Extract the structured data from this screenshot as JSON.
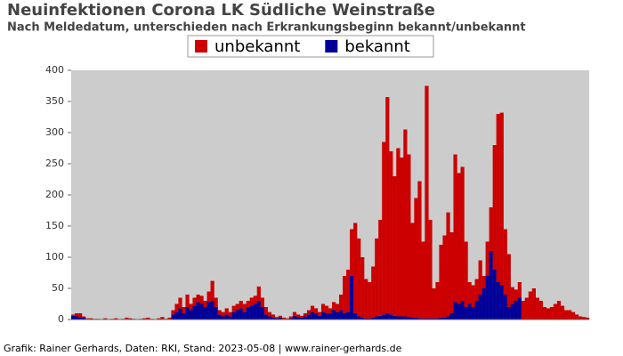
{
  "chart_data": {
    "type": "stacked-bar",
    "title": "Neuinfektionen Corona LK Südliche Weinstraße",
    "subtitle": "Nach Meldedatum, unterschieden nach Erkrankungsbeginn bekannt/unbekannt",
    "footer": "Grafik: Rainer Gerhards, Daten: RKI, Stand: 2023-05-08 | www.rainer-gerhards.de",
    "categories": [
      null,
      null,
      null,
      null,
      null,
      null,
      null,
      null,
      null,
      null,
      null,
      null,
      null,
      null,
      null,
      null,
      null,
      null,
      null,
      null,
      null,
      null,
      null,
      null,
      null,
      null,
      null,
      null,
      null,
      null,
      null,
      null,
      null,
      null,
      null,
      null,
      null,
      null,
      null,
      null,
      null,
      null,
      null,
      null,
      null,
      null,
      null,
      null,
      null,
      null,
      null,
      null,
      null,
      null,
      null,
      null,
      null,
      null,
      null,
      null,
      null,
      null,
      null,
      null,
      null,
      null,
      null,
      null,
      null,
      null,
      null,
      null,
      null,
      null,
      null,
      null,
      null,
      null,
      null,
      null,
      null,
      null,
      null,
      null,
      null,
      null,
      null,
      null,
      null,
      null,
      null,
      null,
      null,
      null,
      null,
      null,
      null,
      null,
      null,
      null,
      null,
      null,
      null,
      null,
      null,
      null,
      null,
      null,
      null,
      null,
      null,
      null,
      null,
      null,
      null,
      null,
      null,
      null,
      null,
      null,
      null,
      null,
      null,
      null,
      null,
      null,
      null,
      null,
      null,
      null,
      null,
      null,
      null,
      null,
      null,
      null,
      null,
      null,
      null,
      null,
      null,
      null,
      null,
      null,
      null
    ],
    "series": [
      {
        "name": "bekannt",
        "color": "#000099",
        "values": [
          6,
          5,
          4,
          3,
          1,
          0,
          0,
          0,
          0,
          0,
          0,
          0,
          0,
          0,
          0,
          1,
          0,
          0,
          0,
          0,
          0,
          1,
          0,
          0,
          0,
          1,
          0,
          1,
          8,
          12,
          18,
          10,
          20,
          15,
          22,
          28,
          25,
          20,
          28,
          30,
          20,
          8,
          5,
          8,
          5,
          12,
          15,
          18,
          12,
          20,
          22,
          25,
          30,
          20,
          8,
          5,
          3,
          2,
          3,
          1,
          1,
          2,
          6,
          4,
          3,
          5,
          8,
          12,
          10,
          6,
          12,
          10,
          10,
          15,
          12,
          15,
          10,
          12,
          70,
          10,
          5,
          3,
          2,
          2,
          3,
          5,
          6,
          8,
          10,
          8,
          6,
          5,
          5,
          5,
          4,
          3,
          3,
          2,
          2,
          2,
          2,
          2,
          2,
          3,
          3,
          5,
          10,
          28,
          25,
          30,
          20,
          25,
          20,
          30,
          40,
          50,
          70,
          110,
          80,
          60,
          55,
          40,
          20,
          25,
          30,
          35,
          0,
          0,
          0,
          0,
          0,
          0,
          0,
          0,
          0,
          0,
          0,
          0,
          0,
          0,
          0,
          0,
          0,
          0,
          0
        ]
      },
      {
        "name": "unbekannt",
        "color": "#cc0000",
        "values": [
          2,
          5,
          6,
          2,
          1,
          2,
          1,
          1,
          0,
          2,
          0,
          1,
          2,
          0,
          1,
          2,
          2,
          1,
          0,
          1,
          2,
          2,
          1,
          0,
          2,
          3,
          1,
          2,
          7,
          13,
          17,
          10,
          20,
          10,
          13,
          12,
          13,
          10,
          17,
          32,
          15,
          7,
          7,
          10,
          7,
          10,
          10,
          12,
          13,
          10,
          13,
          13,
          23,
          15,
          12,
          7,
          5,
          2,
          3,
          2,
          1,
          3,
          6,
          4,
          3,
          5,
          7,
          10,
          8,
          6,
          13,
          12,
          8,
          13,
          13,
          25,
          60,
          68,
          75,
          145,
          125,
          97,
          63,
          58,
          82,
          125,
          154,
          277,
          347,
          262,
          224,
          270,
          255,
          300,
          261,
          152,
          192,
          220,
          123,
          373,
          158,
          48,
          58,
          117,
          132,
          167,
          130,
          237,
          210,
          215,
          105,
          35,
          35,
          35,
          55,
          20,
          55,
          70,
          200,
          270,
          277,
          105,
          85,
          27,
          18,
          25,
          30,
          35,
          45,
          50,
          35,
          30,
          20,
          18,
          20,
          25,
          30,
          22,
          15,
          15,
          12,
          8,
          5,
          4,
          3
        ]
      }
    ],
    "legend_order": [
      1,
      0
    ],
    "ylim": [
      0,
      400
    ],
    "yticks": [
      0,
      50,
      100,
      150,
      200,
      250,
      300,
      350,
      400
    ],
    "grid": false,
    "plot_background": "#cccccc",
    "legend": "top"
  }
}
